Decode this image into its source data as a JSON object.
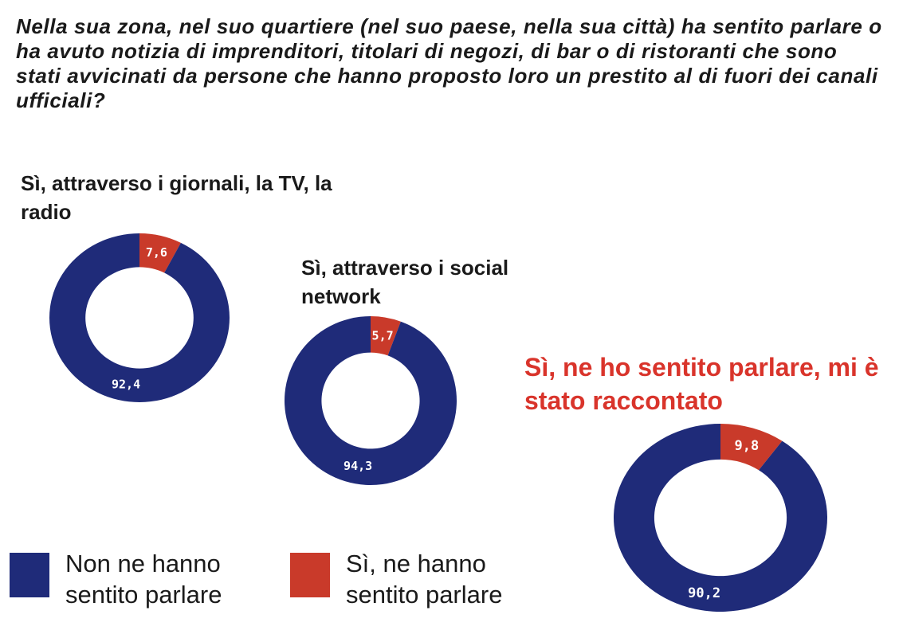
{
  "question": "Nella sua zona, nel suo quartiere (nel suo paese, nella sua città) ha sentito parlare o ha avuto notizia di imprenditori, titolari di negozi, di bar o di ristoranti che sono stati avvicinati da persone che hanno proposto loro un prestito al di fuori dei canali ufficiali?",
  "legend": {
    "no_label": "Non ne hanno sentito parlare",
    "yes_label": "Sì, ne hanno sentito parlare"
  },
  "colors": {
    "no": "#1f2b79",
    "yes": "#c93a2a",
    "highlight_label": "#d9342b"
  },
  "chart_data": [
    {
      "type": "pie",
      "style": "donut",
      "title": "Sì, attraverso i giornali, la TV, la radio",
      "categories": [
        "Non ne hanno sentito parlare",
        "Sì, ne hanno sentito parlare"
      ],
      "values": [
        92.4,
        7.6
      ],
      "value_labels": [
        "92,4",
        "7,6"
      ]
    },
    {
      "type": "pie",
      "style": "donut",
      "title": "Sì, attraverso i social network",
      "categories": [
        "Non ne hanno sentito parlare",
        "Sì, ne hanno sentito parlare"
      ],
      "values": [
        94.3,
        5.7
      ],
      "value_labels": [
        "94,3",
        "5,7"
      ]
    },
    {
      "type": "pie",
      "style": "donut",
      "title": "Sì, ne ho sentito parlare, mi è stato raccontato",
      "categories": [
        "Non ne hanno sentito parlare",
        "Sì, ne hanno sentito parlare"
      ],
      "values": [
        90.2,
        9.8
      ],
      "value_labels": [
        "90,2",
        "9,8"
      ]
    }
  ]
}
